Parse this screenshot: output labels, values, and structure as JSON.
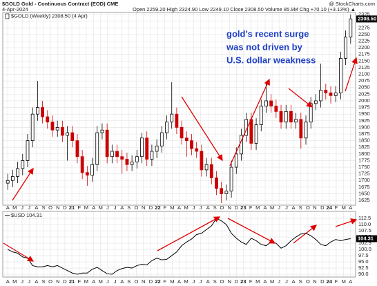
{
  "chart_data": [
    {
      "type": "candlestick",
      "title": "$GOLD Gold - Continuous Contract (EOD) CME",
      "source": "@ StockCharts.com",
      "date": "4-Apr-2024",
      "quote": "Open 2259.20 High 2324.90 Low 2249.10 Close 2308.50 Volume 85.9M Chg +70.10 (+3.13%) ▲",
      "legend": "$GOLD (Weekly) 2308.50 (4 Apr)",
      "annotation": [
        "gold’s recent surge",
        "was not driven by",
        "U.S. dollar weakness"
      ],
      "open": [
        1690,
        1700,
        1715,
        1745,
        1775,
        1850,
        1950,
        1975,
        1940,
        1920,
        1890,
        1900,
        1870,
        1880,
        1850,
        1790,
        1730,
        1720,
        1760,
        1880,
        1890,
        1790,
        1810,
        1790,
        1780,
        1760,
        1770,
        1790,
        1860,
        1780,
        1810,
        1830,
        1880,
        1920,
        1950,
        1900,
        1860,
        1850,
        1820,
        1810,
        1740,
        1760,
        1710,
        1670,
        1650,
        1660,
        1750,
        1800,
        1870,
        1930,
        1840,
        1910,
        1980,
        2000,
        1980,
        1960,
        1920,
        1960,
        1920,
        1930,
        1860,
        1920,
        1990,
        2000,
        2040,
        2030,
        2020,
        2030,
        2160,
        2240
      ],
      "high": [
        1725,
        1740,
        1770,
        1800,
        1875,
        1975,
        2075,
        2000,
        1965,
        1945,
        1925,
        1925,
        1905,
        1905,
        1875,
        1815,
        1755,
        1785,
        1905,
        1915,
        1915,
        1835,
        1835,
        1815,
        1805,
        1795,
        1815,
        1880,
        1885,
        1835,
        1855,
        1905,
        1945,
        2070,
        1975,
        1925,
        1885,
        1875,
        1845,
        1835,
        1785,
        1785,
        1735,
        1695,
        1685,
        1775,
        1825,
        1895,
        1955,
        1955,
        1935,
        2005,
        2070,
        2025,
        2005,
        1985,
        1985,
        1985,
        1955,
        1955,
        1945,
        2015,
        2025,
        2140,
        2065,
        2055,
        2055,
        2185,
        2265,
        2324.9
      ],
      "low": [
        1665,
        1675,
        1690,
        1720,
        1750,
        1825,
        1925,
        1915,
        1895,
        1865,
        1865,
        1845,
        1775,
        1825,
        1765,
        1705,
        1680,
        1695,
        1735,
        1855,
        1765,
        1765,
        1765,
        1725,
        1735,
        1735,
        1745,
        1765,
        1755,
        1755,
        1785,
        1805,
        1855,
        1895,
        1875,
        1835,
        1790,
        1795,
        1785,
        1715,
        1715,
        1685,
        1645,
        1615,
        1625,
        1635,
        1725,
        1775,
        1845,
        1815,
        1815,
        1885,
        1955,
        1955,
        1935,
        1895,
        1895,
        1895,
        1895,
        1820,
        1835,
        1895,
        1965,
        1975,
        2005,
        1990,
        1995,
        2005,
        2135,
        2215
      ],
      "close": [
        1700,
        1715,
        1745,
        1775,
        1850,
        1950,
        1975,
        1940,
        1920,
        1890,
        1900,
        1870,
        1880,
        1850,
        1790,
        1730,
        1720,
        1760,
        1880,
        1890,
        1790,
        1810,
        1790,
        1780,
        1760,
        1770,
        1790,
        1860,
        1780,
        1810,
        1830,
        1880,
        1920,
        1950,
        1900,
        1860,
        1850,
        1820,
        1810,
        1740,
        1760,
        1710,
        1670,
        1650,
        1660,
        1750,
        1800,
        1870,
        1930,
        1840,
        1910,
        1980,
        2000,
        1980,
        1960,
        1920,
        1960,
        1920,
        1930,
        1860,
        1920,
        1990,
        2000,
        2040,
        2030,
        2020,
        2030,
        2160,
        2240,
        2308.5
      ],
      "last_value_label": "2308.50",
      "up_color": "#000000",
      "down_color": "#cc0000",
      "xlim": [
        -1,
        70
      ],
      "xticks": [
        {
          "value": 0,
          "label": "A"
        },
        {
          "value": 1.4,
          "label": "M"
        },
        {
          "value": 2.9,
          "label": "J"
        },
        {
          "value": 4.3,
          "label": "J"
        },
        {
          "value": 5.8,
          "label": "A"
        },
        {
          "value": 7.2,
          "label": "S"
        },
        {
          "value": 8.6,
          "label": "O"
        },
        {
          "value": 10.1,
          "label": "N"
        },
        {
          "value": 11.5,
          "label": "D"
        },
        {
          "value": 12.9,
          "label": "21"
        },
        {
          "value": 14.4,
          "label": "F"
        },
        {
          "value": 15.8,
          "label": "M"
        },
        {
          "value": 17.3,
          "label": "A"
        },
        {
          "value": 18.7,
          "label": "M"
        },
        {
          "value": 20.1,
          "label": "J"
        },
        {
          "value": 21.6,
          "label": "J"
        },
        {
          "value": 23,
          "label": "A"
        },
        {
          "value": 24.4,
          "label": "S"
        },
        {
          "value": 25.9,
          "label": "O"
        },
        {
          "value": 27.3,
          "label": "N"
        },
        {
          "value": 28.8,
          "label": "D"
        },
        {
          "value": 30.2,
          "label": "22"
        },
        {
          "value": 31.6,
          "label": "F"
        },
        {
          "value": 33.1,
          "label": "M"
        },
        {
          "value": 34.5,
          "label": "A"
        },
        {
          "value": 35.9,
          "label": "M"
        },
        {
          "value": 37.4,
          "label": "J"
        },
        {
          "value": 38.8,
          "label": "J"
        },
        {
          "value": 40.3,
          "label": "A"
        },
        {
          "value": 41.7,
          "label": "S"
        },
        {
          "value": 43.1,
          "label": "O"
        },
        {
          "value": 44.6,
          "label": "N"
        },
        {
          "value": 46,
          "label": "D"
        },
        {
          "value": 47.4,
          "label": "23"
        },
        {
          "value": 48.9,
          "label": "F"
        },
        {
          "value": 50.3,
          "label": "M"
        },
        {
          "value": 51.8,
          "label": "A"
        },
        {
          "value": 53.2,
          "label": "M"
        },
        {
          "value": 54.6,
          "label": "J"
        },
        {
          "value": 56.1,
          "label": "J"
        },
        {
          "value": 57.5,
          "label": "A"
        },
        {
          "value": 58.9,
          "label": "S"
        },
        {
          "value": 60.4,
          "label": "O"
        },
        {
          "value": 61.8,
          "label": "N"
        },
        {
          "value": 63.3,
          "label": "D"
        },
        {
          "value": 64.7,
          "label": "24"
        },
        {
          "value": 66.1,
          "label": "F"
        },
        {
          "value": 67.6,
          "label": "M"
        },
        {
          "value": 69,
          "label": "A"
        }
      ],
      "ylim": [
        1607,
        2333
      ],
      "yticks": [
        1625,
        1650,
        1675,
        1700,
        1725,
        1750,
        1775,
        1800,
        1825,
        1850,
        1875,
        1900,
        1925,
        1950,
        1975,
        2000,
        2025,
        2050,
        2075,
        2100,
        2125,
        2150,
        2175,
        2200,
        2225,
        2250,
        2275,
        2300,
        2325
      ],
      "grid": true
    },
    {
      "type": "line",
      "legend": "$USD 104.31",
      "values": [
        100.0,
        99.0,
        98.5,
        97.0,
        96.5,
        93.5,
        93.0,
        93.0,
        93.5,
        93.0,
        93.5,
        92.5,
        91.5,
        90.5,
        90.0,
        90.5,
        90.5,
        92.0,
        92.8,
        91.5,
        90.2,
        90.0,
        91.5,
        92.3,
        92.8,
        92.5,
        93.5,
        94.0,
        93.8,
        95.5,
        96.5,
        95.8,
        96.0,
        97.5,
        99.0,
        101.5,
        103.0,
        104.2,
        106.0,
        106.5,
        108.0,
        109.5,
        112.5,
        111.5,
        110.0,
        106.5,
        104.5,
        103.0,
        102.0,
        104.5,
        103.5,
        102.0,
        101.5,
        103.0,
        102.5,
        100.5,
        101.5,
        103.5,
        105.0,
        106.2,
        106.5,
        105.5,
        104.0,
        102.0,
        101.5,
        103.0,
        104.0,
        103.5,
        104.0,
        104.31
      ],
      "last_value_label": "104.31",
      "color": "#000000",
      "xlim": [
        -1,
        70
      ],
      "xticks": [
        {
          "value": 0,
          "label": "A"
        },
        {
          "value": 1.4,
          "label": "M"
        },
        {
          "value": 2.9,
          "label": "J"
        },
        {
          "value": 4.3,
          "label": "J"
        },
        {
          "value": 5.8,
          "label": "A"
        },
        {
          "value": 7.2,
          "label": "S"
        },
        {
          "value": 8.6,
          "label": "O"
        },
        {
          "value": 10.1,
          "label": "N"
        },
        {
          "value": 11.5,
          "label": "D"
        },
        {
          "value": 12.9,
          "label": "21"
        },
        {
          "value": 14.4,
          "label": "F"
        },
        {
          "value": 15.8,
          "label": "M"
        },
        {
          "value": 17.3,
          "label": "A"
        },
        {
          "value": 18.7,
          "label": "M"
        },
        {
          "value": 20.1,
          "label": "J"
        },
        {
          "value": 21.6,
          "label": "J"
        },
        {
          "value": 23,
          "label": "A"
        },
        {
          "value": 24.4,
          "label": "S"
        },
        {
          "value": 25.9,
          "label": "O"
        },
        {
          "value": 27.3,
          "label": "N"
        },
        {
          "value": 28.8,
          "label": "D"
        },
        {
          "value": 30.2,
          "label": "22"
        },
        {
          "value": 31.6,
          "label": "F"
        },
        {
          "value": 33.1,
          "label": "M"
        },
        {
          "value": 34.5,
          "label": "A"
        },
        {
          "value": 35.9,
          "label": "M"
        },
        {
          "value": 37.4,
          "label": "J"
        },
        {
          "value": 38.8,
          "label": "J"
        },
        {
          "value": 40.3,
          "label": "A"
        },
        {
          "value": 41.7,
          "label": "S"
        },
        {
          "value": 43.1,
          "label": "O"
        },
        {
          "value": 44.6,
          "label": "N"
        },
        {
          "value": 46,
          "label": "D"
        },
        {
          "value": 47.4,
          "label": "23"
        },
        {
          "value": 48.9,
          "label": "F"
        },
        {
          "value": 50.3,
          "label": "M"
        },
        {
          "value": 51.8,
          "label": "A"
        },
        {
          "value": 53.2,
          "label": "M"
        },
        {
          "value": 54.6,
          "label": "J"
        },
        {
          "value": 56.1,
          "label": "J"
        },
        {
          "value": 57.5,
          "label": "A"
        },
        {
          "value": 58.9,
          "label": "S"
        },
        {
          "value": 60.4,
          "label": "O"
        },
        {
          "value": 61.8,
          "label": "N"
        },
        {
          "value": 63.3,
          "label": "D"
        },
        {
          "value": 64.7,
          "label": "24"
        },
        {
          "value": 66.1,
          "label": "F"
        },
        {
          "value": 67.6,
          "label": "M"
        },
        {
          "value": 69,
          "label": "A"
        }
      ],
      "ylim": [
        88.9,
        115.3
      ],
      "yticks": [
        {
          "value": 90,
          "label": "90.0"
        },
        92.5,
        {
          "value": 95,
          "label": "95.0"
        },
        97.5,
        {
          "value": 100,
          "label": "100.0"
        },
        102.5,
        {
          "value": 105,
          "label": "105.0"
        },
        107.5,
        {
          "value": 110,
          "label": "110.0"
        },
        112.5
      ],
      "grid": true
    }
  ]
}
